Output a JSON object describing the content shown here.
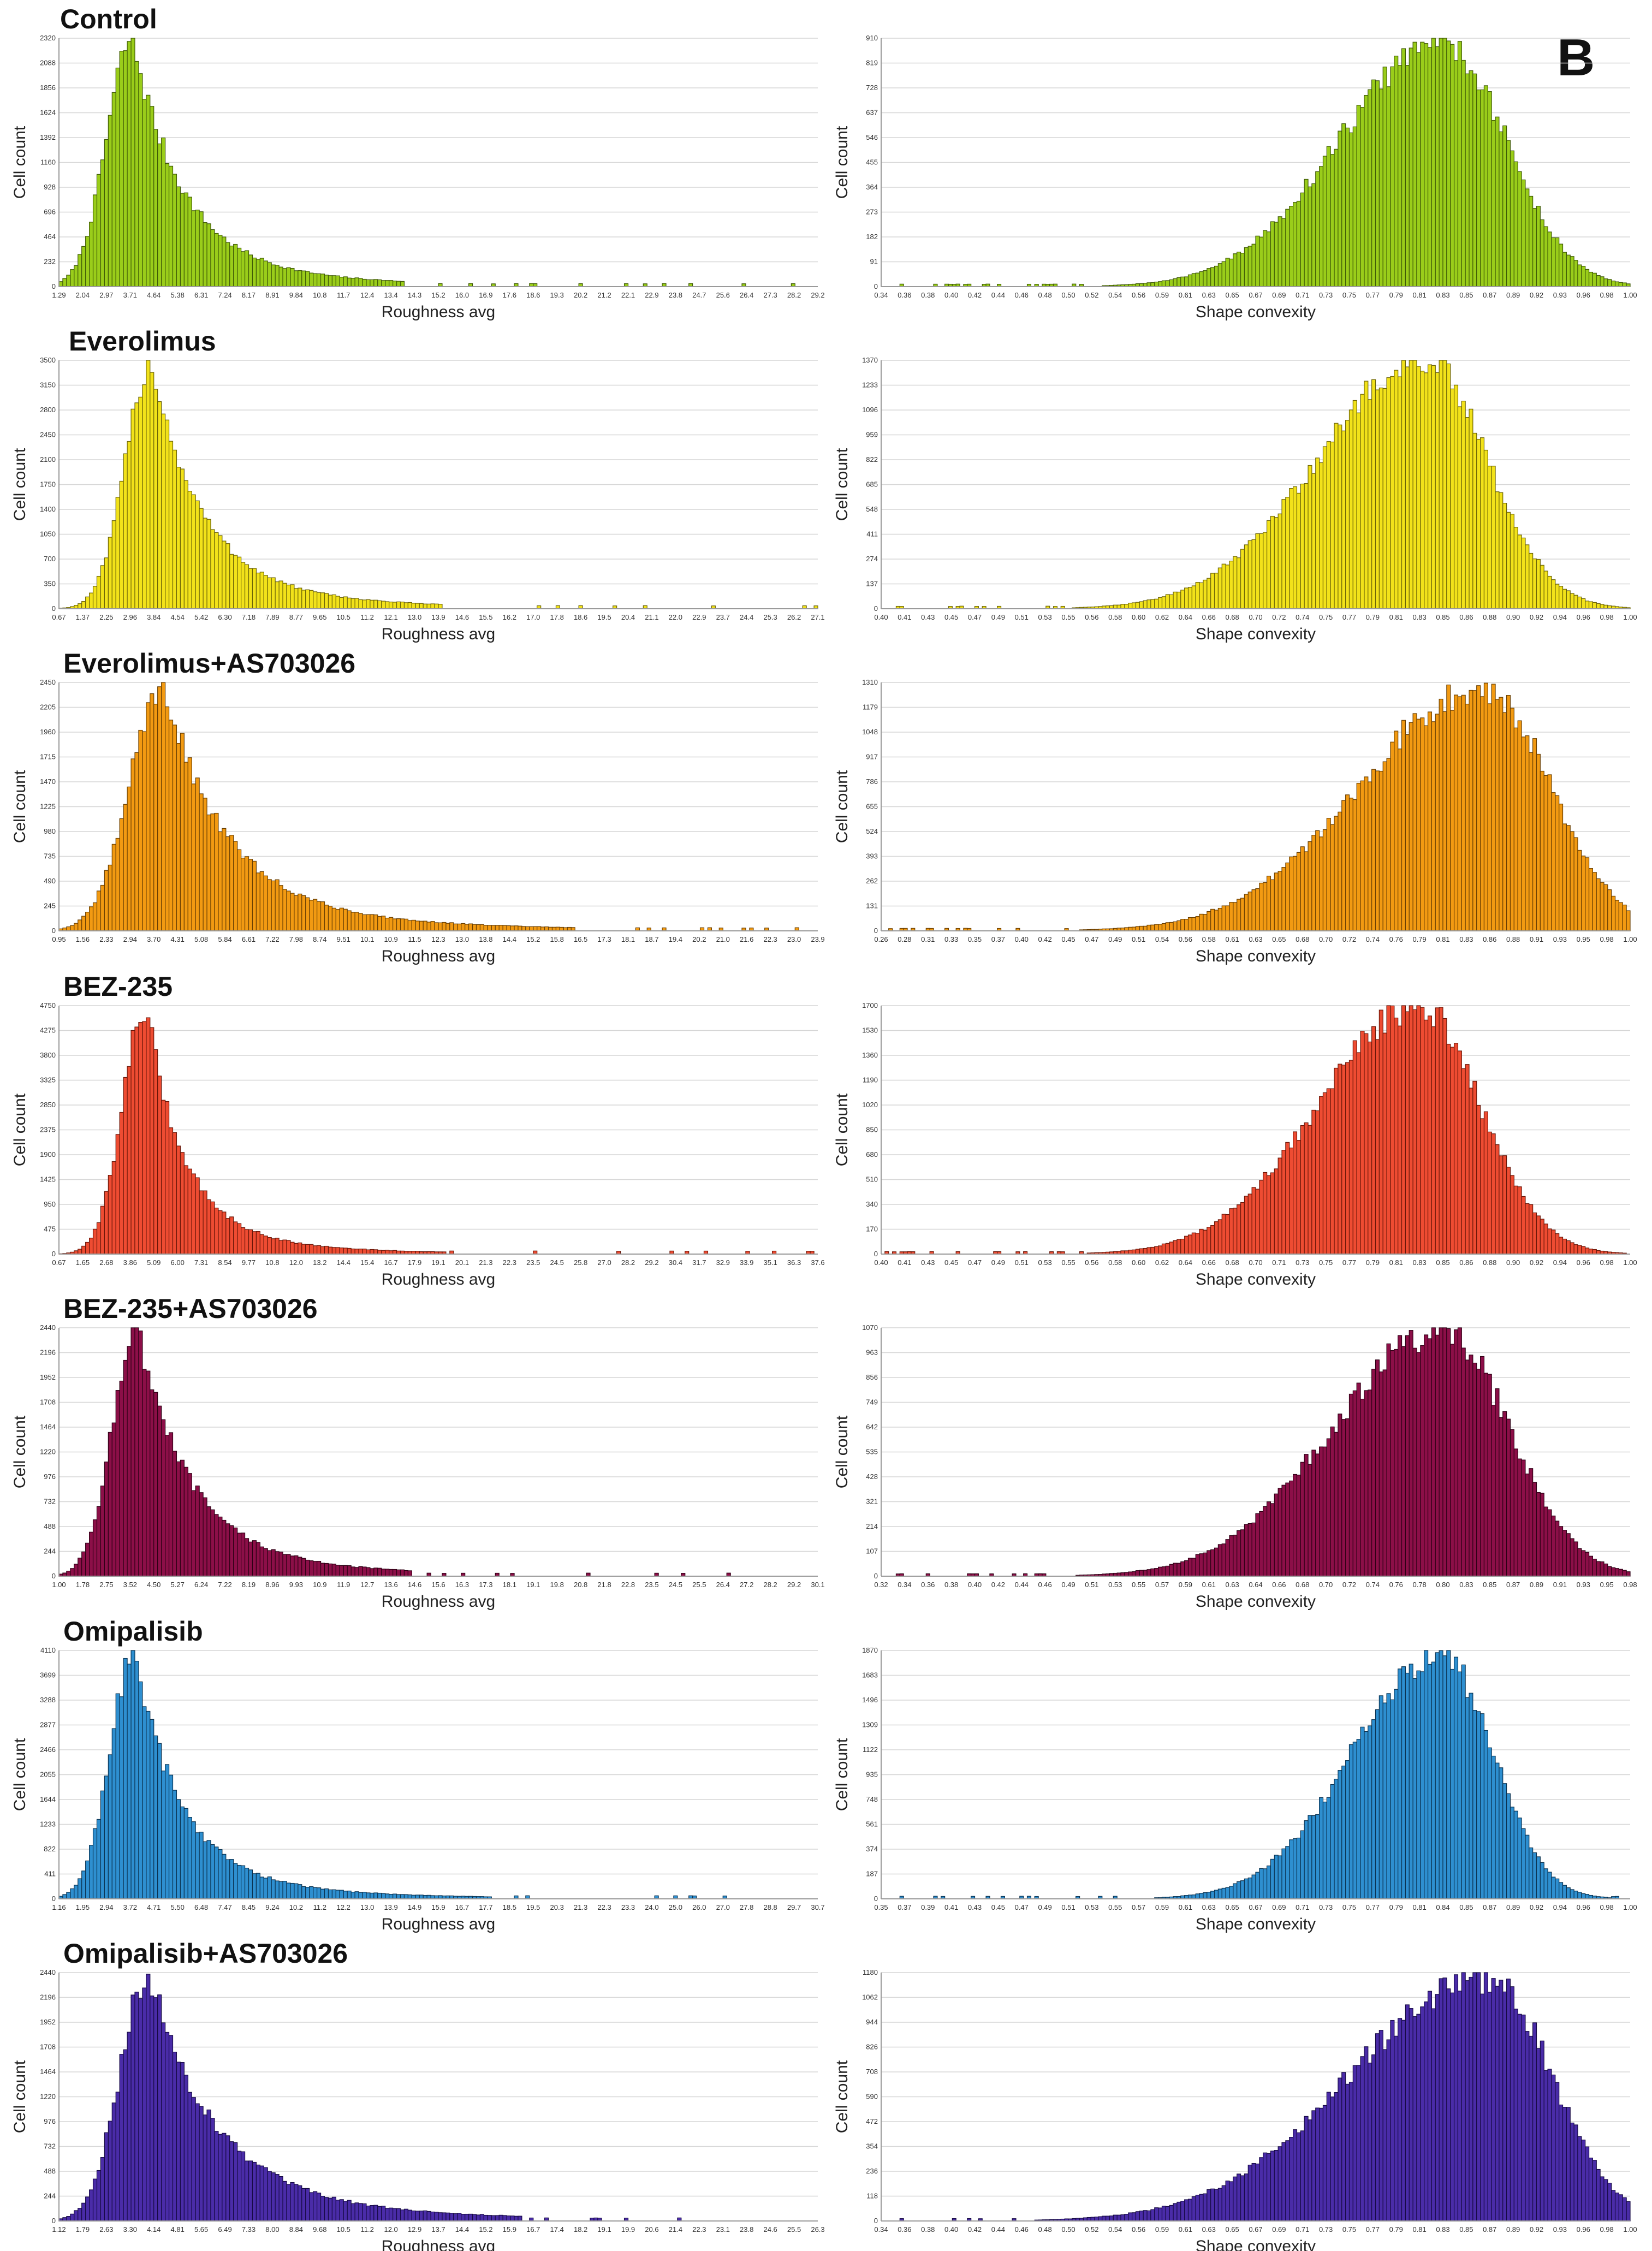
{
  "panel_letter": "B",
  "charts": {
    "roughness": {
      "xlabel": "Roughness avg",
      "ylabel": "Cell count"
    },
    "convexity": {
      "xlabel": "Shape convexity",
      "ylabel": "Cell count"
    }
  },
  "chart_data": [
    {
      "condition": "Control",
      "color": "#9acd1a",
      "stroke": "#3f5a06",
      "roughness": {
        "type": "bar",
        "xlabel": "Roughness avg",
        "ylabel": "Cell count",
        "ylim": [
          0,
          2320
        ],
        "yticks": [
          "2320",
          "2088",
          "1856",
          "1624",
          "1392",
          "1160",
          "928",
          "696",
          "464",
          "232",
          "0"
        ],
        "xticks": [
          "1.29",
          "2.04",
          "2.97",
          "3.71",
          "4.64",
          "5.38",
          "6.31",
          "7.24",
          "8.17",
          "8.91",
          "9.84",
          "10.8",
          "11.7",
          "12.4",
          "13.4",
          "14.3",
          "15.2",
          "16.0",
          "16.9",
          "17.6",
          "18.6",
          "19.3",
          "20.2",
          "21.2",
          "22.1",
          "22.9",
          "23.8",
          "24.7",
          "25.6",
          "26.4",
          "27.3",
          "28.2",
          "29.2"
        ],
        "x_range": [
          1.29,
          29.2
        ],
        "peak_x": 4.0,
        "peak": 2320,
        "left_width": 0.95,
        "right_decay": 1.85,
        "tail_end": 14.0
      },
      "convexity": {
        "type": "bar",
        "xlabel": "Shape convexity",
        "ylabel": "Cell count",
        "ylim": [
          0,
          910
        ],
        "yticks": [
          "910",
          "819",
          "728",
          "637",
          "546",
          "455",
          "364",
          "273",
          "182",
          "91",
          "0"
        ],
        "xticks": [
          "0.34",
          "0.36",
          "0.38",
          "0.40",
          "0.42",
          "0.44",
          "0.46",
          "0.48",
          "0.50",
          "0.52",
          "0.54",
          "0.56",
          "0.59",
          "0.61",
          "0.63",
          "0.65",
          "0.67",
          "0.69",
          "0.71",
          "0.73",
          "0.75",
          "0.77",
          "0.79",
          "0.81",
          "0.83",
          "0.85",
          "0.87",
          "0.89",
          "0.92",
          "0.93",
          "0.96",
          "0.98",
          "1.00"
        ],
        "x_range": [
          0.34,
          1.0
        ],
        "peak_x": 0.835,
        "peak": 900,
        "left_width": 0.09,
        "right_width": 0.055
      }
    },
    {
      "condition": "Everolimus",
      "color": "#f2e21a",
      "stroke": "#6b6306",
      "roughness": {
        "type": "bar",
        "xlabel": "Roughness avg",
        "ylabel": "Cell count",
        "ylim": [
          0,
          3500
        ],
        "yticks": [
          "3500",
          "3150",
          "2800",
          "2450",
          "2100",
          "1750",
          "1400",
          "1050",
          "700",
          "350",
          "0"
        ],
        "xticks": [
          "0.67",
          "1.37",
          "2.25",
          "2.96",
          "3.84",
          "4.54",
          "5.42",
          "6.30",
          "7.18",
          "7.89",
          "8.77",
          "9.65",
          "10.5",
          "11.2",
          "12.1",
          "13.0",
          "13.9",
          "14.6",
          "15.5",
          "16.2",
          "17.0",
          "17.8",
          "18.6",
          "19.5",
          "20.4",
          "21.1",
          "22.0",
          "22.9",
          "23.7",
          "24.4",
          "25.3",
          "26.2",
          "27.1"
        ],
        "x_range": [
          0.67,
          27.1
        ],
        "peak_x": 3.9,
        "peak": 3480,
        "left_width": 0.9,
        "right_decay": 1.75,
        "tail_end": 14.0
      },
      "convexity": {
        "type": "bar",
        "xlabel": "Shape convexity",
        "ylabel": "Cell count",
        "ylim": [
          0,
          1370
        ],
        "yticks": [
          "1370",
          "1233",
          "1096",
          "959",
          "822",
          "685",
          "548",
          "411",
          "274",
          "137",
          "0"
        ],
        "xticks": [
          "0.40",
          "0.41",
          "0.43",
          "0.45",
          "0.47",
          "0.49",
          "0.51",
          "0.53",
          "0.55",
          "0.56",
          "0.58",
          "0.60",
          "0.62",
          "0.64",
          "0.66",
          "0.68",
          "0.70",
          "0.72",
          "0.74",
          "0.75",
          "0.77",
          "0.79",
          "0.81",
          "0.83",
          "0.85",
          "0.86",
          "0.88",
          "0.90",
          "0.92",
          "0.94",
          "0.96",
          "0.98",
          "1.00"
        ],
        "x_range": [
          0.4,
          1.0
        ],
        "peak_x": 0.835,
        "peak": 1370,
        "left_width": 0.085,
        "right_width": 0.05
      }
    },
    {
      "condition": "Everolimus+AS703026",
      "color": "#f29a12",
      "stroke": "#6a3f02",
      "roughness": {
        "type": "bar",
        "xlabel": "Roughness avg",
        "ylabel": "Cell count",
        "ylim": [
          0,
          2450
        ],
        "yticks": [
          "2450",
          "2205",
          "1960",
          "1715",
          "1470",
          "1225",
          "980",
          "735",
          "490",
          "245",
          "0"
        ],
        "xticks": [
          "0.95",
          "1.56",
          "2.33",
          "2.94",
          "3.70",
          "4.31",
          "5.08",
          "5.84",
          "6.61",
          "7.22",
          "7.98",
          "8.74",
          "9.51",
          "10.1",
          "10.9",
          "11.5",
          "12.3",
          "13.0",
          "13.8",
          "14.4",
          "15.2",
          "15.8",
          "16.5",
          "17.3",
          "18.1",
          "18.7",
          "19.4",
          "20.2",
          "21.0",
          "21.6",
          "22.3",
          "23.0",
          "23.9"
        ],
        "x_range": [
          0.95,
          23.9
        ],
        "peak_x": 4.1,
        "peak": 2440,
        "left_width": 1.0,
        "right_decay": 1.9,
        "tail_end": 16.5
      },
      "convexity": {
        "type": "bar",
        "xlabel": "Shape convexity",
        "ylabel": "Cell count",
        "ylim": [
          0,
          1310
        ],
        "yticks": [
          "1310",
          "1179",
          "1048",
          "917",
          "786",
          "655",
          "524",
          "393",
          "262",
          "131",
          "0"
        ],
        "xticks": [
          "0.26",
          "0.28",
          "0.31",
          "0.33",
          "0.35",
          "0.37",
          "0.40",
          "0.42",
          "0.45",
          "0.47",
          "0.49",
          "0.51",
          "0.54",
          "0.56",
          "0.58",
          "0.61",
          "0.63",
          "0.65",
          "0.68",
          "0.70",
          "0.72",
          "0.74",
          "0.76",
          "0.79",
          "0.81",
          "0.83",
          "0.86",
          "0.88",
          "0.91",
          "0.93",
          "0.95",
          "0.98",
          "1.00"
        ],
        "x_range": [
          0.26,
          1.0
        ],
        "peak_x": 0.855,
        "peak": 1290,
        "left_width": 0.12,
        "right_width": 0.065
      }
    },
    {
      "condition": "BEZ-235",
      "color": "#ee4c32",
      "stroke": "#6a1608",
      "roughness": {
        "type": "bar",
        "xlabel": "Roughness avg",
        "ylabel": "Cell count",
        "ylim": [
          0,
          4750
        ],
        "yticks": [
          "4750",
          "4275",
          "3800",
          "3325",
          "2850",
          "2375",
          "1900",
          "1425",
          "950",
          "475",
          "0"
        ],
        "xticks": [
          "0.67",
          "1.65",
          "2.68",
          "3.86",
          "5.09",
          "6.00",
          "7.31",
          "8.54",
          "9.77",
          "10.8",
          "12.0",
          "13.2",
          "14.4",
          "15.4",
          "16.7",
          "17.9",
          "19.1",
          "20.1",
          "21.3",
          "22.3",
          "23.5",
          "24.5",
          "25.8",
          "27.0",
          "28.2",
          "29.2",
          "30.4",
          "31.7",
          "32.9",
          "33.9",
          "35.1",
          "36.3",
          "37.6"
        ],
        "x_range": [
          0.67,
          37.6
        ],
        "peak_x": 4.9,
        "peak": 4700,
        "left_width": 1.15,
        "right_decay": 1.9,
        "tail_end": 19.5
      },
      "convexity": {
        "type": "bar",
        "xlabel": "Shape convexity",
        "ylabel": "Cell count",
        "ylim": [
          0,
          1700
        ],
        "yticks": [
          "1700",
          "1530",
          "1360",
          "1190",
          "1020",
          "850",
          "680",
          "510",
          "340",
          "170",
          "0"
        ],
        "xticks": [
          "0.40",
          "0.41",
          "0.43",
          "0.45",
          "0.47",
          "0.49",
          "0.51",
          "0.53",
          "0.55",
          "0.56",
          "0.58",
          "0.60",
          "0.62",
          "0.64",
          "0.66",
          "0.68",
          "0.70",
          "0.71",
          "0.73",
          "0.75",
          "0.77",
          "0.79",
          "0.81",
          "0.83",
          "0.85",
          "0.86",
          "0.88",
          "0.90",
          "0.92",
          "0.94",
          "0.96",
          "0.98",
          "1.00"
        ],
        "x_range": [
          0.4,
          1.0
        ],
        "peak_x": 0.83,
        "peak": 1690,
        "left_width": 0.08,
        "right_width": 0.05
      }
    },
    {
      "condition": "BEZ-235+AS703026",
      "color": "#8c0f48",
      "stroke": "#2e0015",
      "roughness": {
        "type": "bar",
        "xlabel": "Roughness avg",
        "ylabel": "Cell count",
        "ylim": [
          0,
          2440
        ],
        "yticks": [
          "2440",
          "2196",
          "1952",
          "1708",
          "1464",
          "1220",
          "976",
          "732",
          "488",
          "244",
          "0"
        ],
        "xticks": [
          "1.00",
          "1.78",
          "2.75",
          "3.52",
          "4.50",
          "5.27",
          "6.24",
          "7.22",
          "8.19",
          "8.96",
          "9.93",
          "10.9",
          "11.9",
          "12.7",
          "13.6",
          "14.6",
          "15.6",
          "16.3",
          "17.3",
          "18.1",
          "19.1",
          "19.8",
          "20.8",
          "21.8",
          "22.8",
          "23.5",
          "24.5",
          "25.5",
          "26.4",
          "27.2",
          "28.2",
          "29.2",
          "30.1"
        ],
        "x_range": [
          1.0,
          30.1
        ],
        "peak_x": 4.0,
        "peak": 2440,
        "left_width": 0.95,
        "right_decay": 2.0,
        "tail_end": 14.5
      },
      "convexity": {
        "type": "bar",
        "xlabel": "Shape convexity",
        "ylabel": "Cell count",
        "ylim": [
          0,
          1070
        ],
        "yticks": [
          "1070",
          "963",
          "856",
          "749",
          "642",
          "535",
          "428",
          "321",
          "214",
          "107",
          "0"
        ],
        "xticks": [
          "0.32",
          "0.34",
          "0.36",
          "0.38",
          "0.40",
          "0.42",
          "0.44",
          "0.46",
          "0.49",
          "0.51",
          "0.53",
          "0.55",
          "0.57",
          "0.59",
          "0.61",
          "0.63",
          "0.64",
          "0.66",
          "0.68",
          "0.70",
          "0.72",
          "0.74",
          "0.76",
          "0.78",
          "0.80",
          "0.83",
          "0.85",
          "0.87",
          "0.89",
          "0.91",
          "0.93",
          "0.95",
          "0.98"
        ],
        "x_range": [
          0.32,
          1.0
        ],
        "peak_x": 0.83,
        "peak": 1060,
        "left_width": 0.1,
        "right_width": 0.06
      }
    },
    {
      "condition": "Omipalisib",
      "color": "#2e8fd0",
      "stroke": "#0a3352",
      "roughness": {
        "type": "bar",
        "xlabel": "Roughness avg",
        "ylabel": "Cell count",
        "ylim": [
          0,
          4110
        ],
        "yticks": [
          "4110",
          "3699",
          "3288",
          "2877",
          "2466",
          "2055",
          "1644",
          "1233",
          "822",
          "411",
          "0"
        ],
        "xticks": [
          "1.16",
          "1.95",
          "2.94",
          "3.72",
          "4.71",
          "5.50",
          "6.48",
          "7.47",
          "8.45",
          "9.24",
          "10.2",
          "11.2",
          "12.2",
          "13.0",
          "13.9",
          "14.9",
          "15.9",
          "16.7",
          "17.7",
          "18.5",
          "19.5",
          "20.3",
          "21.3",
          "22.3",
          "23.3",
          "24.0",
          "25.0",
          "26.0",
          "27.0",
          "27.8",
          "28.8",
          "29.7",
          "30.7"
        ],
        "x_range": [
          1.16,
          30.7
        ],
        "peak_x": 4.1,
        "peak": 4100,
        "left_width": 0.95,
        "right_decay": 1.8,
        "tail_end": 18.0
      },
      "convexity": {
        "type": "bar",
        "xlabel": "Shape convexity",
        "ylabel": "Cell count",
        "ylim": [
          0,
          1870
        ],
        "yticks": [
          "1870",
          "1683",
          "1496",
          "1309",
          "1122",
          "935",
          "748",
          "561",
          "374",
          "187",
          "0"
        ],
        "xticks": [
          "0.35",
          "0.37",
          "0.39",
          "0.41",
          "0.43",
          "0.45",
          "0.47",
          "0.49",
          "0.51",
          "0.53",
          "0.55",
          "0.57",
          "0.59",
          "0.61",
          "0.63",
          "0.65",
          "0.67",
          "0.69",
          "0.71",
          "0.73",
          "0.75",
          "0.77",
          "0.79",
          "0.81",
          "0.84",
          "0.85",
          "0.87",
          "0.89",
          "0.92",
          "0.94",
          "0.96",
          "0.98",
          "1.00"
        ],
        "x_range": [
          0.35,
          1.0
        ],
        "peak_x": 0.835,
        "peak": 1860,
        "left_width": 0.075,
        "right_width": 0.045
      }
    },
    {
      "condition": "Omipalisib+AS703026",
      "color": "#4a2ca8",
      "stroke": "#170a45",
      "roughness": {
        "type": "bar",
        "xlabel": "Roughness avg",
        "ylabel": "Cell count",
        "ylim": [
          0,
          2440
        ],
        "yticks": [
          "2440",
          "2196",
          "1952",
          "1708",
          "1464",
          "1220",
          "976",
          "732",
          "488",
          "244",
          "0"
        ],
        "xticks": [
          "1.12",
          "1.79",
          "2.63",
          "3.30",
          "4.14",
          "4.81",
          "5.65",
          "6.49",
          "7.33",
          "8.00",
          "8.84",
          "9.68",
          "10.5",
          "11.2",
          "12.0",
          "12.9",
          "13.7",
          "14.4",
          "15.2",
          "15.9",
          "16.7",
          "17.4",
          "18.2",
          "19.1",
          "19.9",
          "20.6",
          "21.4",
          "22.3",
          "23.1",
          "23.8",
          "24.6",
          "25.5",
          "26.3"
        ],
        "x_range": [
          1.12,
          26.3
        ],
        "peak_x": 4.1,
        "peak": 2430,
        "left_width": 0.95,
        "right_decay": 2.2,
        "tail_end": 16.5
      },
      "convexity": {
        "type": "bar",
        "xlabel": "Shape convexity",
        "ylabel": "Cell count",
        "ylim": [
          0,
          1180
        ],
        "yticks": [
          "1180",
          "1062",
          "944",
          "826",
          "708",
          "590",
          "472",
          "354",
          "236",
          "118",
          "0"
        ],
        "xticks": [
          "0.34",
          "0.36",
          "0.38",
          "0.40",
          "0.42",
          "0.44",
          "0.46",
          "0.48",
          "0.50",
          "0.52",
          "0.54",
          "0.56",
          "0.59",
          "0.61",
          "0.63",
          "0.65",
          "0.67",
          "0.69",
          "0.71",
          "0.73",
          "0.75",
          "0.77",
          "0.79",
          "0.81",
          "0.83",
          "0.85",
          "0.87",
          "0.89",
          "0.92",
          "0.93",
          "0.96",
          "0.98",
          "1.00"
        ],
        "x_range": [
          0.34,
          1.0
        ],
        "peak_x": 0.875,
        "peak": 1160,
        "left_width": 0.12,
        "right_width": 0.055
      }
    }
  ]
}
